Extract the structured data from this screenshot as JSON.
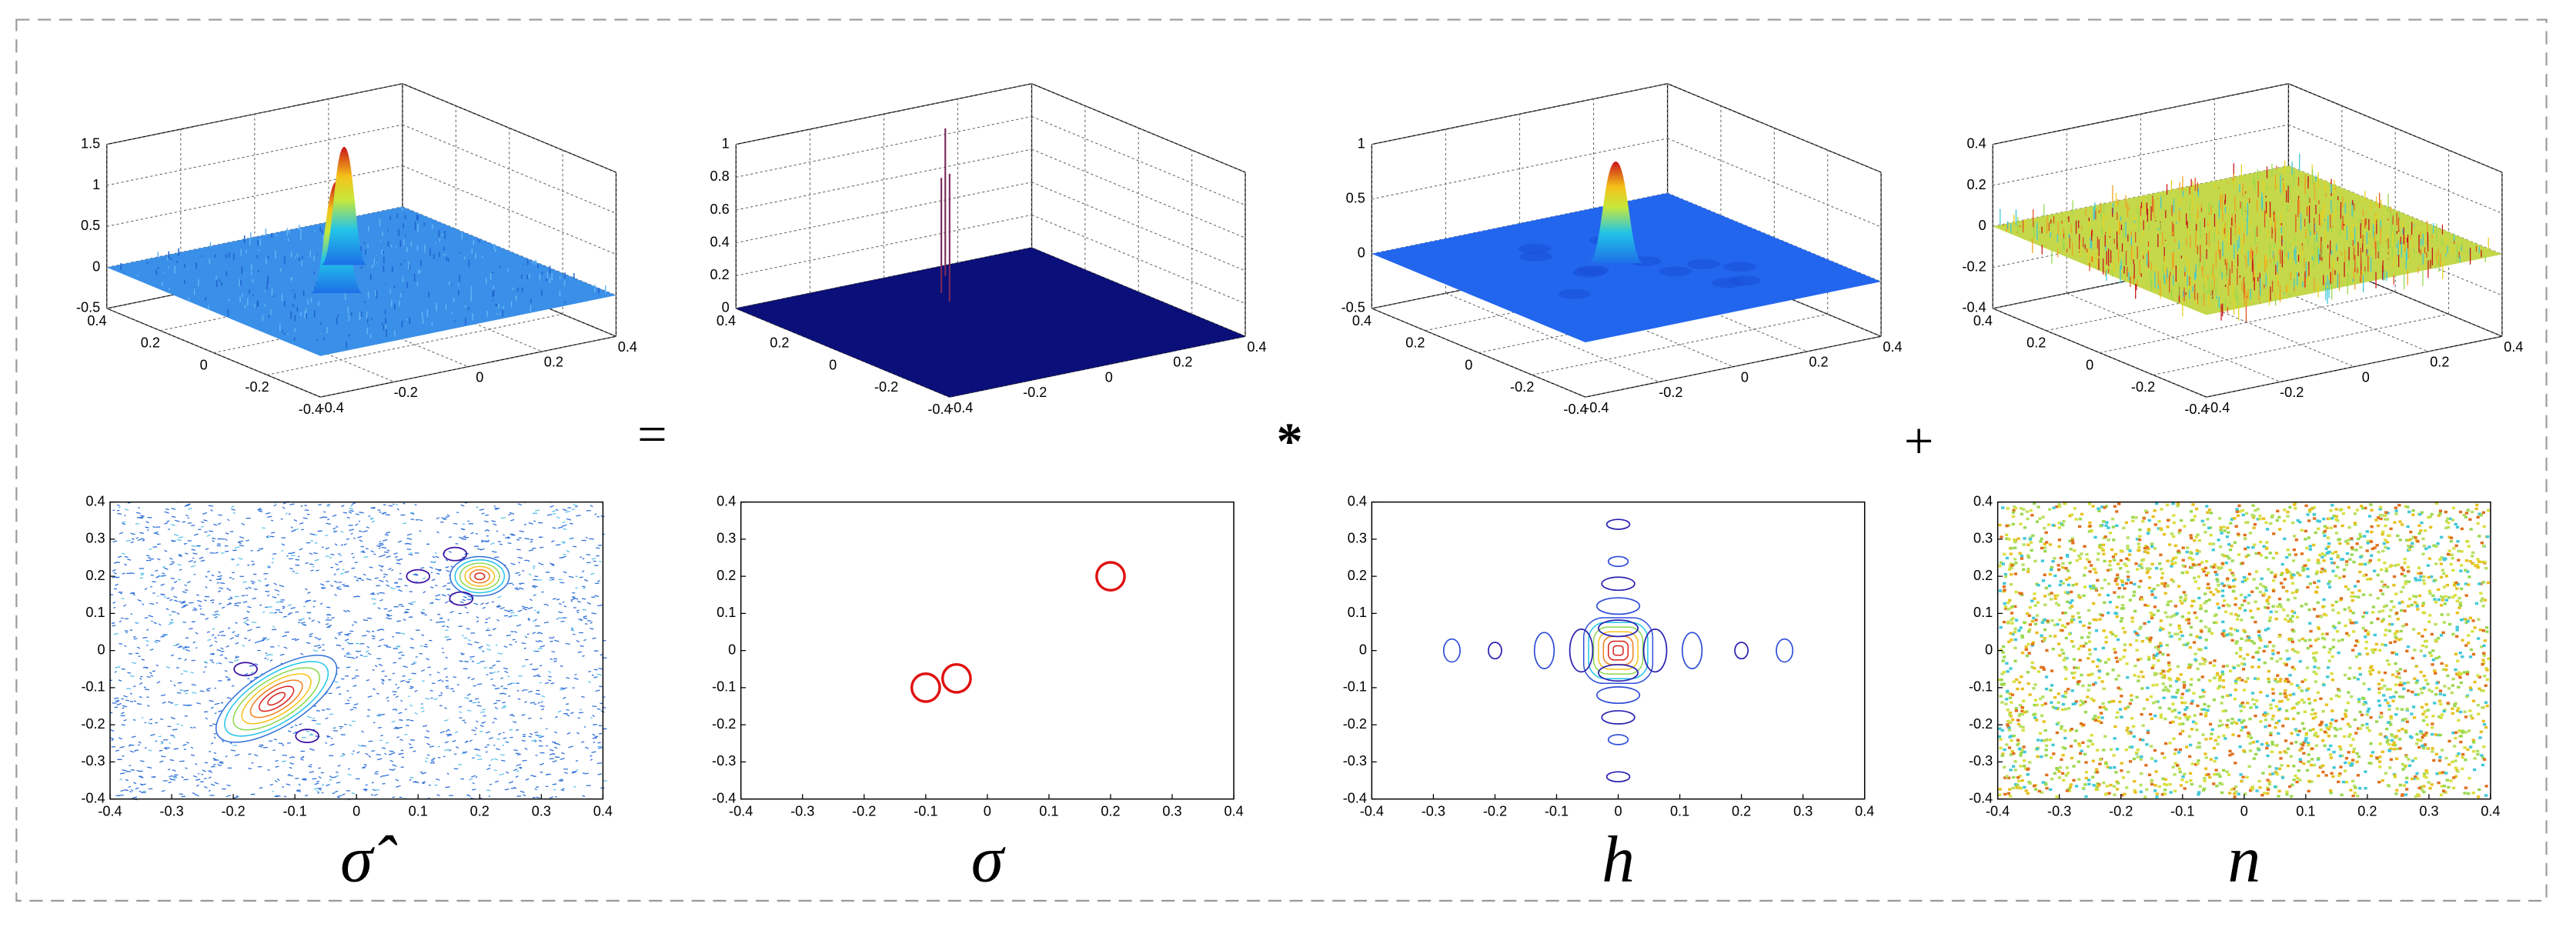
{
  "panels": [
    {
      "surface": {
        "zticks": [
          -0.5,
          0,
          0.5,
          1,
          1.5
        ],
        "xticks": [
          -0.4,
          -0.2,
          0,
          0.2,
          0.4
        ],
        "yticks": [
          -0.4,
          -0.2,
          0,
          0.2,
          0.4
        ]
      },
      "contour": {
        "xticks": [
          -0.4,
          -0.3,
          -0.2,
          -0.1,
          0,
          0.1,
          0.2,
          0.3,
          0.4
        ],
        "yticks": [
          -0.4,
          -0.3,
          -0.2,
          -0.1,
          0,
          0.1,
          0.2,
          0.3,
          0.4
        ]
      },
      "symbol": "σ̂"
    },
    {
      "surface": {
        "zticks": [
          0,
          0.2,
          0.4,
          0.6,
          0.8,
          1
        ],
        "xticks": [
          -0.4,
          -0.2,
          0,
          0.2,
          0.4
        ],
        "yticks": [
          -0.4,
          -0.2,
          0,
          0.2,
          0.4
        ]
      },
      "contour": {
        "xticks": [
          -0.4,
          -0.3,
          -0.2,
          -0.1,
          0,
          0.1,
          0.2,
          0.3,
          0.4
        ],
        "yticks": [
          -0.4,
          -0.3,
          -0.2,
          -0.1,
          0,
          0.1,
          0.2,
          0.3,
          0.4
        ]
      },
      "symbol": "σ"
    },
    {
      "surface": {
        "zticks": [
          -0.5,
          0,
          0.5,
          1
        ],
        "xticks": [
          -0.4,
          -0.2,
          0,
          0.2,
          0.4
        ],
        "yticks": [
          -0.4,
          -0.2,
          0,
          0.2,
          0.4
        ]
      },
      "contour": {
        "xticks": [
          -0.4,
          -0.3,
          -0.2,
          -0.1,
          0,
          0.1,
          0.2,
          0.3,
          0.4
        ],
        "yticks": [
          -0.4,
          -0.3,
          -0.2,
          -0.1,
          0,
          0.1,
          0.2,
          0.3,
          0.4
        ]
      },
      "symbol": "h"
    },
    {
      "surface": {
        "zticks": [
          -0.4,
          -0.2,
          0,
          0.2,
          0.4
        ],
        "xticks": [
          -0.4,
          -0.2,
          0,
          0.2,
          0.4
        ],
        "yticks": [
          -0.4,
          -0.2,
          0,
          0.2,
          0.4
        ]
      },
      "contour": {
        "xticks": [
          -0.4,
          -0.3,
          -0.2,
          -0.1,
          0,
          0.1,
          0.2,
          0.3,
          0.4
        ],
        "yticks": [
          -0.4,
          -0.3,
          -0.2,
          -0.1,
          0,
          0.1,
          0.2,
          0.3,
          0.4
        ]
      },
      "symbol": "n"
    }
  ],
  "operators": [
    "=",
    "*",
    "+"
  ]
}
